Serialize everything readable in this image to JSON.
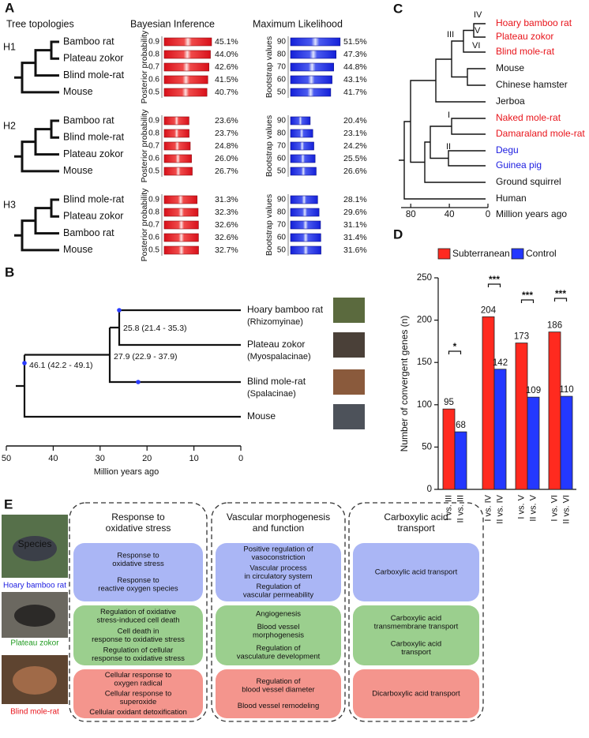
{
  "panel_a": {
    "label": "A",
    "headers": [
      "Tree topologies",
      "Bayesian Inference",
      "Maximum Likelihood"
    ],
    "bi_axis_label": "Posterior probability",
    "ml_axis_label": "Bootstrap values",
    "bi_scale": [
      0.9,
      0.8,
      0.7,
      0.6,
      0.5
    ],
    "ml_scale": [
      90,
      80,
      70,
      60,
      50
    ],
    "topologies": [
      {
        "name": "H1",
        "taxa": [
          "Bamboo rat",
          "Plateau zokor",
          "Blind mole-rat",
          "Mouse"
        ],
        "bi": [
          45.1,
          44.0,
          42.6,
          41.5,
          40.7
        ],
        "bi_labels": [
          "45.1%",
          "44.0%",
          "42.6%",
          "41.5%",
          "40.7%"
        ],
        "ml": [
          51.5,
          47.3,
          44.8,
          43.1,
          41.7
        ],
        "ml_labels": [
          "51.5%",
          "47.3%",
          "44.8%",
          "43.1%",
          "41.7%"
        ]
      },
      {
        "name": "H2",
        "taxa": [
          "Bamboo rat",
          "Blind mole-rat",
          "Plateau zokor",
          "Mouse"
        ],
        "bi": [
          23.6,
          23.7,
          24.8,
          26.0,
          26.7
        ],
        "bi_labels": [
          "23.6%",
          "23.7%",
          "24.8%",
          "26.0%",
          "26.7%"
        ],
        "ml": [
          20.4,
          23.1,
          24.2,
          25.5,
          26.6
        ],
        "ml_labels": [
          "20.4%",
          "23.1%",
          "24.2%",
          "25.5%",
          "26.6%"
        ]
      },
      {
        "name": "H3",
        "taxa": [
          "Blind mole-rat",
          "Plateau zokor",
          "Bamboo rat",
          "Mouse"
        ],
        "bi": [
          31.3,
          32.3,
          32.6,
          32.6,
          32.7
        ],
        "bi_labels": [
          "31.3%",
          "32.3%",
          "32.6%",
          "32.6%",
          "32.7%"
        ],
        "ml": [
          28.1,
          29.6,
          31.1,
          31.4,
          31.6
        ],
        "ml_labels": [
          "28.1%",
          "29.6%",
          "31.1%",
          "31.4%",
          "31.6%"
        ]
      }
    ]
  },
  "panel_b": {
    "label": "B",
    "taxa": [
      {
        "name": "Hoary bamboo rat",
        "subfamily": "(Rhizomyinae)"
      },
      {
        "name": "Plateau zokor",
        "subfamily": "(Myospalacinae)"
      },
      {
        "name": "Blind mole-rat",
        "subfamily": "(Spalacinae)"
      },
      {
        "name": "Mouse"
      }
    ],
    "node_labels": [
      "25.8 (21.4 - 35.3)",
      "27.9 (22.9 - 37.9)",
      "46.1 (42.2 - 49.1)"
    ],
    "xlim": [
      50,
      0
    ],
    "xticks": [
      50,
      40,
      30,
      20,
      10,
      0
    ],
    "xlabel": "Million years ago"
  },
  "panel_c": {
    "label": "C",
    "taxa": [
      {
        "name": "Hoary bamboo rat",
        "color": "#e8141b"
      },
      {
        "name": "Plateau zokor",
        "color": "#e8141b"
      },
      {
        "name": "Blind mole-rat",
        "color": "#e8141b"
      },
      {
        "name": "Mouse",
        "color": "#111111"
      },
      {
        "name": "Chinese hamster",
        "color": "#111111"
      },
      {
        "name": "Jerboa",
        "color": "#111111"
      },
      {
        "name": "Naked mole-rat",
        "color": "#e8141b"
      },
      {
        "name": "Damaraland mole-rat",
        "color": "#e8141b"
      },
      {
        "name": "Degu",
        "color": "#1c1ce0"
      },
      {
        "name": "Guinea pig",
        "color": "#1c1ce0"
      },
      {
        "name": "Ground squirrel",
        "color": "#111111"
      },
      {
        "name": "Human",
        "color": "#111111"
      }
    ],
    "clade_labels": [
      "IV",
      "V",
      "VI",
      "III",
      "I",
      "II"
    ],
    "xlim": [
      90,
      0
    ],
    "xticks": [
      80,
      40,
      0
    ],
    "xlabel": "Million years ago"
  },
  "chart_data": {
    "type": "bar",
    "label": "D",
    "categories": [
      "I vs. III",
      "II vs. III",
      "I vs. IV",
      "II vs. IV",
      "I vs. V",
      "II vs. V",
      "I vs. VI",
      "II vs. VI"
    ],
    "series": [
      {
        "name": "Subterranean",
        "color": "#ff2a1f",
        "values": [
          95,
          null,
          204,
          null,
          173,
          null,
          186,
          null
        ]
      },
      {
        "name": "Control",
        "color": "#2438ff",
        "values": [
          null,
          68,
          null,
          142,
          null,
          109,
          null,
          110
        ]
      }
    ],
    "ylim": [
      0,
      250
    ],
    "yticks": [
      0,
      50,
      100,
      150,
      200,
      250
    ],
    "ylabel": "Number of convergent genes (n)",
    "annotations": [
      "*",
      "***",
      "***",
      "***"
    ]
  },
  "panel_e": {
    "label": "E",
    "species_header": "Species",
    "species": [
      {
        "name": "Hoary bamboo rat",
        "color": "#1c1ce0"
      },
      {
        "name": "Plateau zokor",
        "color": "#1f9a1f"
      },
      {
        "name": "Blind mole-rat",
        "color": "#e8141b"
      }
    ],
    "row_colors": [
      "#aab6f5",
      "#9bcf8e",
      "#f4958d"
    ],
    "columns": [
      {
        "title": [
          "Response to",
          "oxidative stress"
        ],
        "cells": [
          [
            [
              "Response to",
              "oxidative stress"
            ],
            [
              "Response to",
              "reactive oxygen species"
            ]
          ],
          [
            [
              "Regulation of oxidative",
              "stress-induced cell death"
            ],
            [
              "Cell death in",
              "response to oxidative stress"
            ],
            [
              "Regulation of cellular",
              "response to oxidative stress"
            ]
          ],
          [
            [
              "Cellular response to",
              "oxygen radical"
            ],
            [
              "Cellular response to",
              "superoxide"
            ],
            [
              "Cellular oxidant detoxification"
            ]
          ]
        ]
      },
      {
        "title": [
          "Vascular morphogenesis",
          "and function"
        ],
        "cells": [
          [
            [
              "Positive regulation of",
              "vasoconstriction"
            ],
            [
              "Vascular process",
              "in circulatory system"
            ],
            [
              "Regulation of",
              "vascular permeability"
            ]
          ],
          [
            [
              "Angiogenesis"
            ],
            [
              "Blood vessel",
              "morphogenesis"
            ],
            [
              "Regulation of",
              "vasculature development"
            ]
          ],
          [
            [
              "Regulation of",
              "blood vessel diameter"
            ],
            [
              "Blood vessel remodeling"
            ]
          ]
        ]
      },
      {
        "title": [
          "Carboxylic acid",
          "transport"
        ],
        "cells": [
          [
            [
              "Carboxylic acid transport"
            ]
          ],
          [
            [
              "Carboxylic acid",
              "transmembrane transport"
            ],
            [
              "Carboxylic acid",
              "transport"
            ]
          ],
          [
            [
              "Dicarboxylic acid transport"
            ]
          ]
        ]
      }
    ]
  }
}
